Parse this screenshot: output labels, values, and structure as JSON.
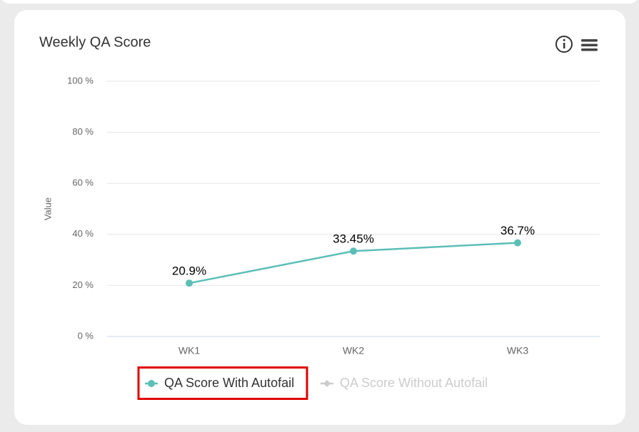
{
  "chart_data": {
    "type": "line",
    "title": "Weekly QA Score",
    "ylabel": "Value",
    "categories": [
      "WK1",
      "WK2",
      "WK3"
    ],
    "series": [
      {
        "name": "QA Score With Autofail",
        "color": "#5bbfb7",
        "values": [
          20.9,
          33.45,
          36.7
        ],
        "value_labels": [
          "20.9%",
          "33.45%",
          "36.7%"
        ]
      },
      {
        "name": "QA Score Without Autofail",
        "color": "#cccccc",
        "values": [
          null,
          null,
          null
        ],
        "hidden": true
      }
    ],
    "ylim": [
      0,
      100
    ],
    "yticks": [
      {
        "value": 0,
        "label": "0 %"
      },
      {
        "value": 20,
        "label": "20 %"
      },
      {
        "value": 40,
        "label": "40 %"
      },
      {
        "value": 60,
        "label": "60 %"
      },
      {
        "value": 80,
        "label": "80 %"
      },
      {
        "value": 100,
        "label": "100 %"
      }
    ],
    "grid": true
  }
}
